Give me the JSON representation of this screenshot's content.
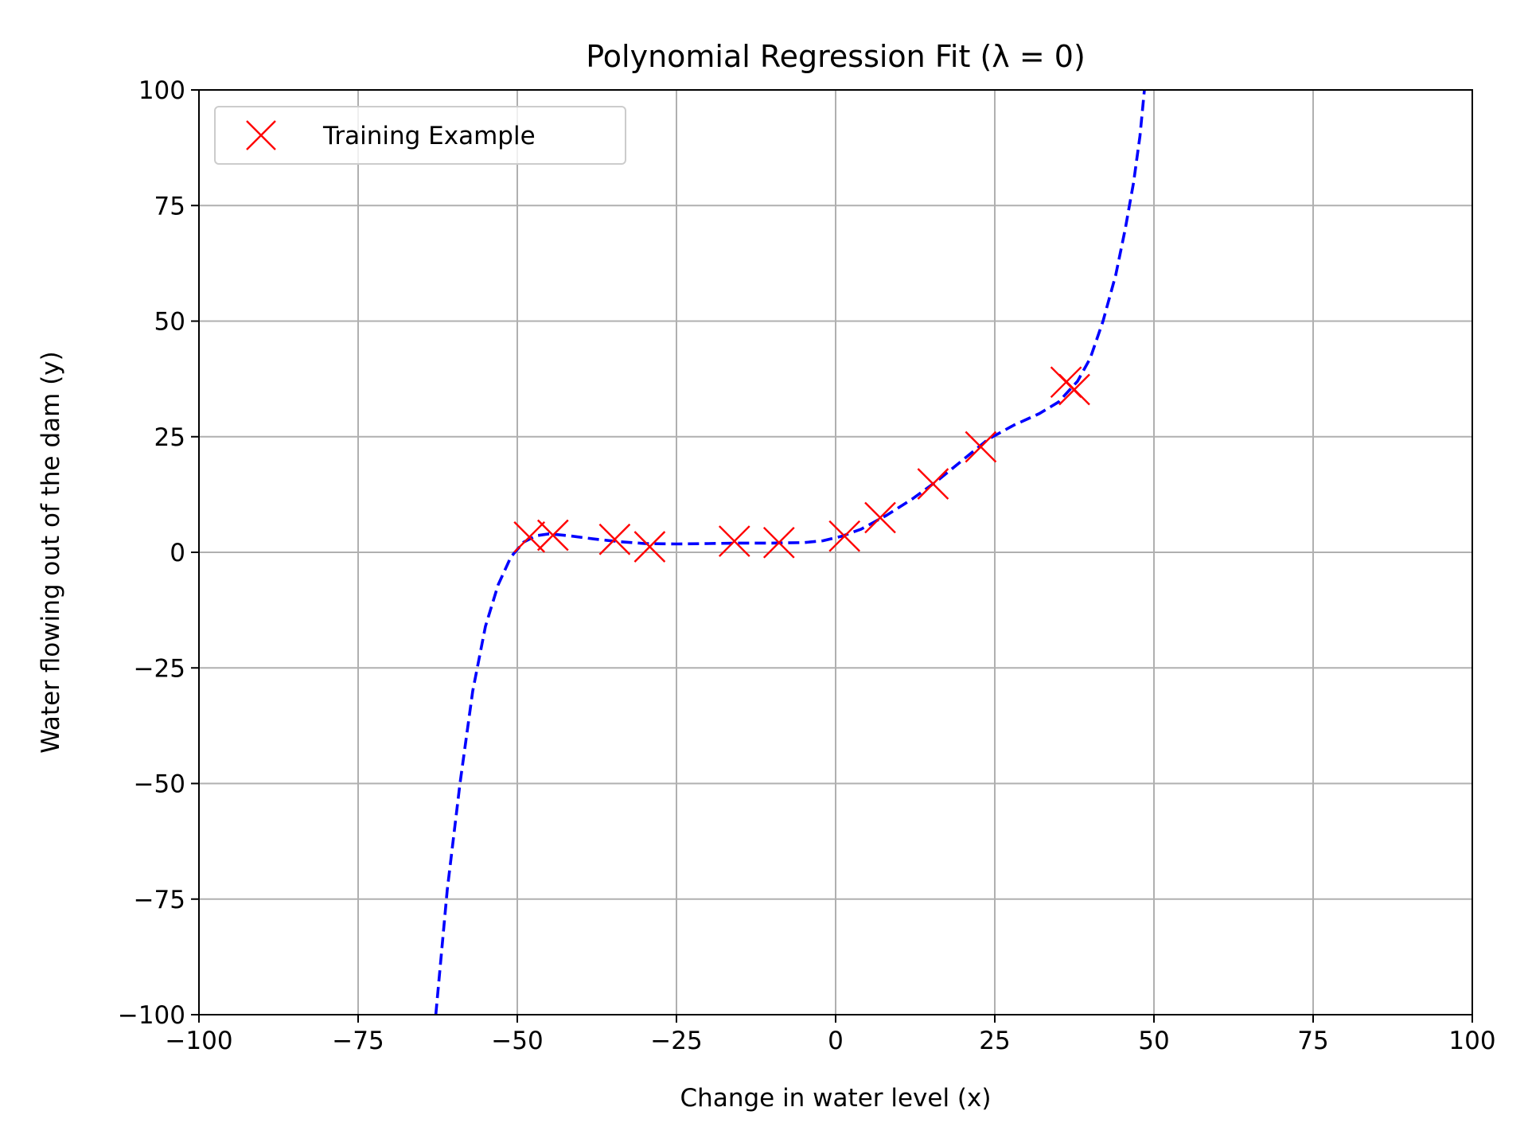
{
  "chart_data": {
    "type": "scatter",
    "title": "Polynomial Regression Fit (λ = 0)",
    "xlabel": "Change in water level (x)",
    "ylabel": "Water flowing out of the dam (y)",
    "xlim": [
      -100,
      100
    ],
    "ylim": [
      -100,
      100
    ],
    "grid": true,
    "legend_position": "top-left",
    "x_ticks": [
      -100,
      -75,
      -50,
      -25,
      0,
      25,
      50,
      75,
      100
    ],
    "x_tick_labels": [
      "−100",
      "−75",
      "−50",
      "−25",
      "0",
      "25",
      "50",
      "75",
      "100"
    ],
    "y_ticks": [
      -100,
      -75,
      -50,
      -25,
      0,
      25,
      50,
      75,
      100
    ],
    "y_tick_labels": [
      "−100",
      "−75",
      "−50",
      "−25",
      "0",
      "25",
      "50",
      "75",
      "100"
    ],
    "series": [
      {
        "name": "Training Example",
        "kind": "scatter",
        "marker": "x",
        "color": "#ff0000",
        "points": [
          {
            "x": -48.1,
            "y": 3.3
          },
          {
            "x": -44.4,
            "y": 3.7
          },
          {
            "x": -34.7,
            "y": 2.8
          },
          {
            "x": -29.2,
            "y": 1.2
          },
          {
            "x": -15.9,
            "y": 2.4
          },
          {
            "x": -8.9,
            "y": 2.1
          },
          {
            "x": 1.4,
            "y": 3.5
          },
          {
            "x": 7.0,
            "y": 7.5
          },
          {
            "x": 15.3,
            "y": 14.8
          },
          {
            "x": 22.8,
            "y": 22.8
          },
          {
            "x": 36.2,
            "y": 36.8
          },
          {
            "x": 37.5,
            "y": 35.2
          }
        ]
      },
      {
        "kind": "line",
        "style": "dashed",
        "color": "#0000ff",
        "points": [
          {
            "x": -62.8,
            "y": -100
          },
          {
            "x": -61.0,
            "y": -73
          },
          {
            "x": -59.0,
            "y": -50
          },
          {
            "x": -57.0,
            "y": -30
          },
          {
            "x": -55.0,
            "y": -16
          },
          {
            "x": -53.0,
            "y": -7
          },
          {
            "x": -51.0,
            "y": -1
          },
          {
            "x": -49.0,
            "y": 2.2
          },
          {
            "x": -47.0,
            "y": 3.6
          },
          {
            "x": -45.0,
            "y": 4.0
          },
          {
            "x": -42.0,
            "y": 3.6
          },
          {
            "x": -38.0,
            "y": 2.9
          },
          {
            "x": -34.0,
            "y": 2.3
          },
          {
            "x": -30.0,
            "y": 1.9
          },
          {
            "x": -25.0,
            "y": 1.8
          },
          {
            "x": -20.0,
            "y": 1.9
          },
          {
            "x": -15.0,
            "y": 2.0
          },
          {
            "x": -10.0,
            "y": 2.0
          },
          {
            "x": -5.0,
            "y": 2.1
          },
          {
            "x": -2.0,
            "y": 2.5
          },
          {
            "x": 1.0,
            "y": 3.5
          },
          {
            "x": 4.0,
            "y": 5.0
          },
          {
            "x": 8.0,
            "y": 8.0
          },
          {
            "x": 12.0,
            "y": 11.5
          },
          {
            "x": 16.0,
            "y": 15.5
          },
          {
            "x": 20.0,
            "y": 20.0
          },
          {
            "x": 24.0,
            "y": 24.5
          },
          {
            "x": 28.0,
            "y": 27.5
          },
          {
            "x": 32.0,
            "y": 30.0
          },
          {
            "x": 35.0,
            "y": 32.5
          },
          {
            "x": 38.0,
            "y": 37.0
          },
          {
            "x": 40.0,
            "y": 42.0
          },
          {
            "x": 42.0,
            "y": 50.0
          },
          {
            "x": 44.0,
            "y": 60.0
          },
          {
            "x": 45.5,
            "y": 70.0
          },
          {
            "x": 46.8,
            "y": 80.0
          },
          {
            "x": 47.8,
            "y": 90.0
          },
          {
            "x": 48.5,
            "y": 100.0
          }
        ]
      }
    ]
  }
}
